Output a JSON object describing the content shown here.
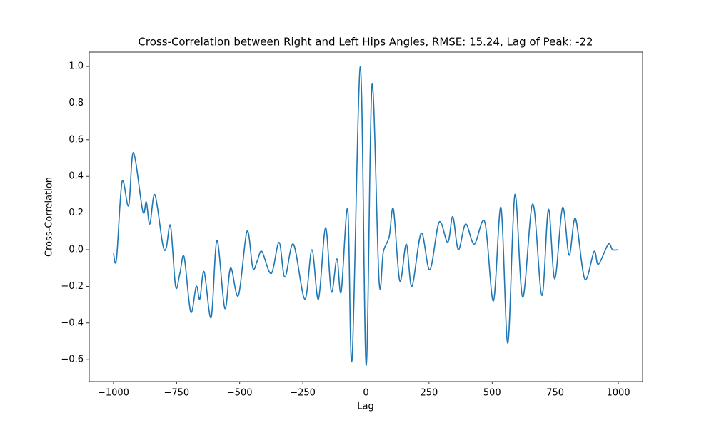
{
  "chart_data": {
    "type": "line",
    "title": "Cross-Correlation between Right and Left Hips Angles, RMSE: 15.24, Lag of Peak: -22",
    "x_label": "Lag",
    "y_label": "Cross-Correlation",
    "x": [
      -1000,
      -988,
      -966,
      -940,
      -921,
      -884,
      -870,
      -856,
      -836,
      -805,
      -791,
      -774,
      -754,
      -737,
      -720,
      -694,
      -672,
      -658,
      -641,
      -613,
      -590,
      -559,
      -536,
      -505,
      -471,
      -448,
      -430,
      -412,
      -375,
      -344,
      -321,
      -287,
      -242,
      -214,
      -188,
      -160,
      -137,
      -115,
      -98,
      -72,
      -55,
      -22,
      1,
      24,
      52,
      69,
      92,
      109,
      134,
      160,
      182,
      219,
      253,
      290,
      324,
      344,
      366,
      395,
      429,
      471,
      505,
      535,
      562,
      590,
      621,
      661,
      697,
      723,
      748,
      779,
      805,
      830,
      867,
      904,
      921,
      960,
      977,
      1000
    ],
    "series": [
      {
        "name": "Cross-Correlation",
        "color": "#1f77b4",
        "values": [
          -0.02,
          -0.05,
          0.37,
          0.24,
          0.53,
          0.21,
          0.26,
          0.14,
          0.3,
          0.03,
          0.01,
          0.13,
          -0.2,
          -0.13,
          -0.04,
          -0.34,
          -0.2,
          -0.27,
          -0.12,
          -0.37,
          0.05,
          -0.32,
          -0.1,
          -0.25,
          0.1,
          -0.1,
          -0.06,
          -0.01,
          -0.13,
          0.04,
          -0.15,
          0.03,
          -0.27,
          0.0,
          -0.27,
          0.12,
          -0.23,
          -0.05,
          -0.23,
          0.22,
          -0.6,
          1.0,
          -0.63,
          0.9,
          -0.17,
          -0.01,
          0.07,
          0.22,
          -0.17,
          0.03,
          -0.2,
          0.09,
          -0.11,
          0.15,
          0.04,
          0.18,
          0.0,
          0.14,
          0.03,
          0.15,
          -0.28,
          0.23,
          -0.51,
          0.3,
          -0.26,
          0.25,
          -0.25,
          0.22,
          -0.16,
          0.23,
          -0.03,
          0.17,
          -0.16,
          -0.01,
          -0.08,
          0.03,
          0.0,
          0.0
        ]
      }
    ],
    "xlim": [
      -1096,
      1096
    ],
    "ylim": [
      -0.72,
      1.078
    ],
    "xticks": [
      {
        "value": -1000,
        "label": "−1000"
      },
      {
        "value": -750,
        "label": "−750"
      },
      {
        "value": -500,
        "label": "−500"
      },
      {
        "value": -250,
        "label": "−250"
      },
      0,
      250,
      500,
      750,
      1000
    ],
    "yticks": [
      {
        "value": -0.6,
        "label": "−0.6"
      },
      {
        "value": -0.4,
        "label": "−0.4"
      },
      {
        "value": -0.2,
        "label": "−0.2"
      },
      {
        "value": 0,
        "label": "0.0"
      },
      {
        "value": 0.2,
        "label": "0.2"
      },
      {
        "value": 0.4,
        "label": "0.4"
      },
      {
        "value": 0.6,
        "label": "0.6"
      },
      {
        "value": 0.8,
        "label": "0.8"
      },
      {
        "value": 1,
        "label": "1.0"
      }
    ],
    "grid": false
  }
}
